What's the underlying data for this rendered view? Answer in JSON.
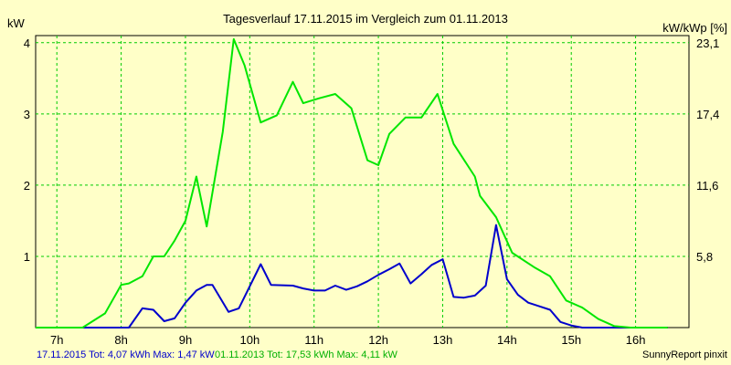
{
  "chart_data": {
    "type": "line",
    "title": "Tagesverlauf 17.11.2015 im Vergleich zum 01.11.2013",
    "ylabel_left": "kW",
    "ylabel_right": "kW/kWp [%]",
    "grid": true,
    "xlim": [
      6.67,
      16.83
    ],
    "ylim": [
      0,
      4.1
    ],
    "x_ticks": [
      {
        "x": 7,
        "label": "7h"
      },
      {
        "x": 8,
        "label": "8h"
      },
      {
        "x": 9,
        "label": "9h"
      },
      {
        "x": 10,
        "label": "10h"
      },
      {
        "x": 11,
        "label": "11h"
      },
      {
        "x": 12,
        "label": "12h"
      },
      {
        "x": 13,
        "label": "13h"
      },
      {
        "x": 14,
        "label": "14h"
      },
      {
        "x": 15,
        "label": "15h"
      },
      {
        "x": 16,
        "label": "16h"
      }
    ],
    "y_ticks_left": [
      {
        "y": 1,
        "label": "1"
      },
      {
        "y": 2,
        "label": "2"
      },
      {
        "y": 3,
        "label": "3"
      },
      {
        "y": 4,
        "label": "4"
      }
    ],
    "y_ticks_right": [
      {
        "y": 1,
        "label": "5,8"
      },
      {
        "y": 2,
        "label": "11,6"
      },
      {
        "y": 3,
        "label": "17,4"
      },
      {
        "y": 4,
        "label": "23,1"
      }
    ],
    "series": [
      {
        "name": "17.11.2015",
        "color": "#0000cc",
        "x": [
          6.67,
          7.0,
          7.25,
          7.5,
          7.75,
          8.0,
          8.12,
          8.33,
          8.5,
          8.67,
          8.83,
          9.0,
          9.17,
          9.33,
          9.42,
          9.67,
          9.83,
          10.17,
          10.33,
          10.67,
          10.83,
          11.0,
          11.17,
          11.33,
          11.5,
          11.67,
          11.83,
          12.0,
          12.17,
          12.33,
          12.5,
          12.67,
          12.83,
          13.0,
          13.17,
          13.33,
          13.5,
          13.67,
          13.83,
          14.0,
          14.17,
          14.33,
          14.5,
          14.67,
          14.83,
          15.0,
          15.17,
          15.33,
          15.5,
          15.67,
          16.0,
          16.17,
          16.33,
          16.5
        ],
        "y": [
          0,
          0,
          0,
          0,
          0,
          0,
          0,
          0.27,
          0.25,
          0.09,
          0.13,
          0.35,
          0.52,
          0.6,
          0.6,
          0.22,
          0.27,
          0.89,
          0.6,
          0.59,
          0.55,
          0.52,
          0.52,
          0.59,
          0.53,
          0.58,
          0.65,
          0.74,
          0.82,
          0.9,
          0.62,
          0.75,
          0.88,
          0.96,
          0.43,
          0.42,
          0.45,
          0.59,
          1.44,
          0.68,
          0.46,
          0.35,
          0.3,
          0.25,
          0.08,
          0.03,
          0,
          0,
          0,
          0,
          0,
          0,
          0,
          0
        ]
      },
      {
        "name": "01.11.2013",
        "color": "#00e600",
        "x": [
          6.67,
          7.0,
          7.2,
          7.4,
          7.75,
          8.0,
          8.12,
          8.33,
          8.5,
          8.67,
          8.83,
          9.0,
          9.17,
          9.33,
          9.58,
          9.75,
          9.92,
          10.17,
          10.42,
          10.67,
          10.83,
          11.08,
          11.33,
          11.58,
          11.83,
          12.0,
          12.17,
          12.42,
          12.67,
          12.92,
          13.17,
          13.5,
          13.58,
          13.83,
          14.08,
          14.42,
          14.67,
          14.92,
          15.17,
          15.42,
          15.67,
          15.92,
          16.17,
          16.42,
          16.5
        ],
        "y": [
          0,
          0,
          0,
          0,
          0.2,
          0.6,
          0.62,
          0.72,
          1.0,
          1.0,
          1.22,
          1.5,
          2.12,
          1.42,
          2.75,
          4.05,
          3.68,
          2.88,
          2.98,
          3.45,
          3.15,
          3.22,
          3.28,
          3.08,
          2.35,
          2.28,
          2.72,
          2.95,
          2.95,
          3.28,
          2.58,
          2.12,
          1.85,
          1.55,
          1.05,
          0.85,
          0.72,
          0.38,
          0.28,
          0.12,
          0.02,
          0,
          0,
          0,
          0
        ]
      }
    ],
    "footer": {
      "series1_text": "17.11.2015 Tot: 4,07 kWh Max: 1,47 kW",
      "series2_text": "01.11.2013 Tot: 17,53 kWh Max: 4,11 kW",
      "credit": "SunnyReport pinxit"
    }
  }
}
